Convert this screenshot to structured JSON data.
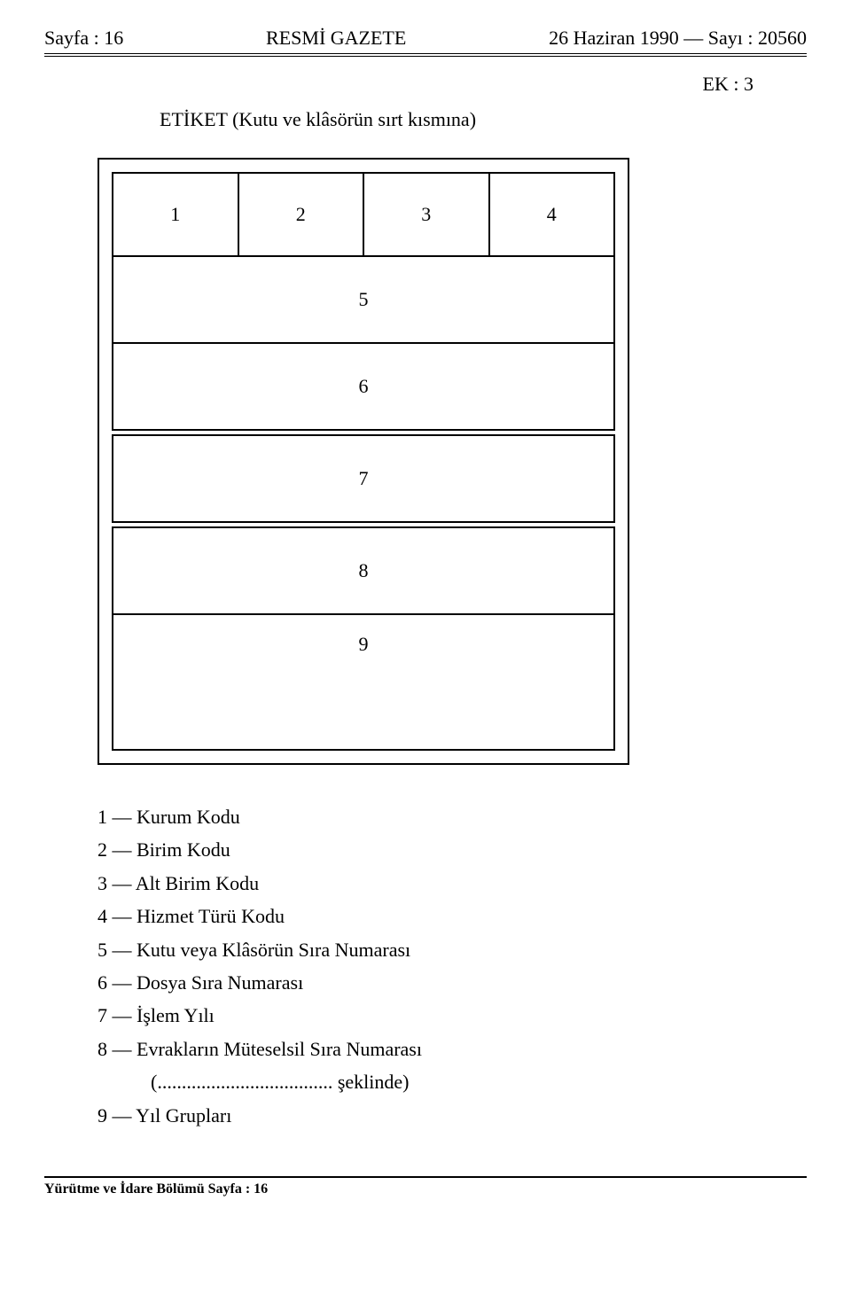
{
  "header": {
    "left": "Sayfa : 16",
    "center": "RESMİ GAZETE",
    "right": "26 Haziran 1990 — Sayı : 20560"
  },
  "ek": "EK : 3",
  "etiket": "ETİKET (Kutu ve klâsörün sırt kısmına)",
  "cells": {
    "c1": "1",
    "c2": "2",
    "c3": "3",
    "c4": "4",
    "c5": "5",
    "c6": "6",
    "c7": "7",
    "c8": "8",
    "c9": "9"
  },
  "legend": {
    "i1": "1 — Kurum Kodu",
    "i2": "2 — Birim Kodu",
    "i3": "3 — Alt Birim Kodu",
    "i4": "4 — Hizmet Türü Kodu",
    "i5": "5 — Kutu veya Klâsörün Sıra Numarası",
    "i6": "6 — Dosya Sıra Numarası",
    "i7": "7 — İşlem Yılı",
    "i8": "8 — Evrakların Müteselsil Sıra Numarası",
    "i8sub": "(.................................... şeklinde)",
    "i9": "9 — Yıl Grupları"
  },
  "footer": "Yürütme ve İdare Bölümü Sayfa : 16"
}
